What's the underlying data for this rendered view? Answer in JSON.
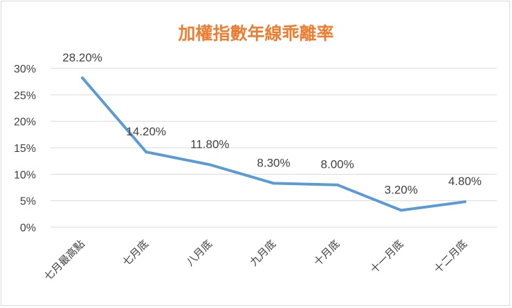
{
  "chart_data": {
    "type": "line",
    "title": "加權指數年線乖離率",
    "categories": [
      "七月最高點",
      "七月底",
      "八月底",
      "九月底",
      "十月底",
      "十一月底",
      "十二月底"
    ],
    "series": [
      {
        "values": [
          28.2,
          14.2,
          11.8,
          8.3,
          8.0,
          3.2,
          4.8
        ],
        "labels": [
          "28.20%",
          "14.20%",
          "11.80%",
          "8.30%",
          "8.00%",
          "3.20%",
          "4.80%"
        ],
        "color": "#5b9bd5"
      }
    ],
    "y_ticks": [
      "0%",
      "5%",
      "10%",
      "15%",
      "20%",
      "25%",
      "30%"
    ],
    "ylim": [
      0,
      30
    ],
    "grid": true,
    "title_color": "#ed7d31"
  }
}
